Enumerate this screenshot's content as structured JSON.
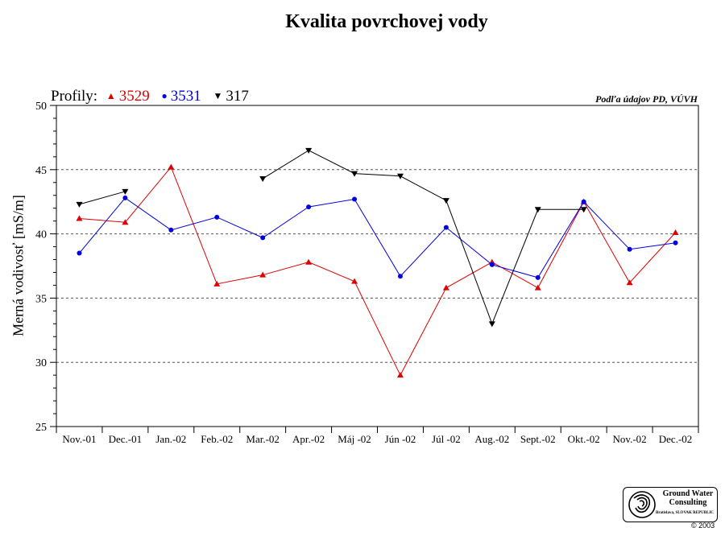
{
  "chart_data": {
    "type": "line",
    "title": "Kvalita povrchovej vody",
    "ylabel": "Merná vodivosť [mS/m]",
    "xlabel": "",
    "categories": [
      "Nov.-01",
      "Dec.-01",
      "Jan.-02",
      "Feb.-02",
      "Mar.-02",
      "Apr.-02",
      "Máj -02",
      "Jún -02",
      "Júl -02",
      "Aug.-02",
      "Sept.-02",
      "Okt.-02",
      "Nov.-02",
      "Dec.-02"
    ],
    "ylim": [
      25,
      50
    ],
    "yticks": [
      25,
      30,
      35,
      40,
      45,
      50
    ],
    "gridlines": [
      30,
      35,
      40,
      45
    ],
    "legend_title": "Profily:",
    "legend_position": "top-left",
    "series": [
      {
        "name": "3529",
        "color": "#e00000",
        "marker": "triangle-up",
        "values": [
          41.2,
          40.9,
          45.2,
          36.1,
          36.8,
          37.8,
          36.3,
          29.0,
          35.8,
          37.8,
          35.8,
          42.5,
          36.2,
          40.1
        ]
      },
      {
        "name": "3531",
        "color": "#0000e0",
        "marker": "circle",
        "values": [
          38.5,
          42.8,
          40.3,
          41.3,
          39.7,
          42.1,
          42.7,
          36.7,
          40.5,
          37.6,
          36.6,
          42.5,
          38.8,
          39.3
        ]
      },
      {
        "name": "317",
        "color": "#000000",
        "marker": "triangle-down",
        "values": [
          42.3,
          43.3,
          null,
          null,
          44.3,
          46.5,
          44.7,
          44.5,
          42.6,
          33.0,
          41.9,
          41.9,
          null,
          null
        ]
      }
    ]
  },
  "note": "Podľa údajov PD, VÚVH",
  "logo": {
    "name_line1": "Ground Water",
    "name_line2": "Consulting",
    "place": "Bratislava, SLOVAK REPUBLIC"
  },
  "copyright": "© 2003"
}
